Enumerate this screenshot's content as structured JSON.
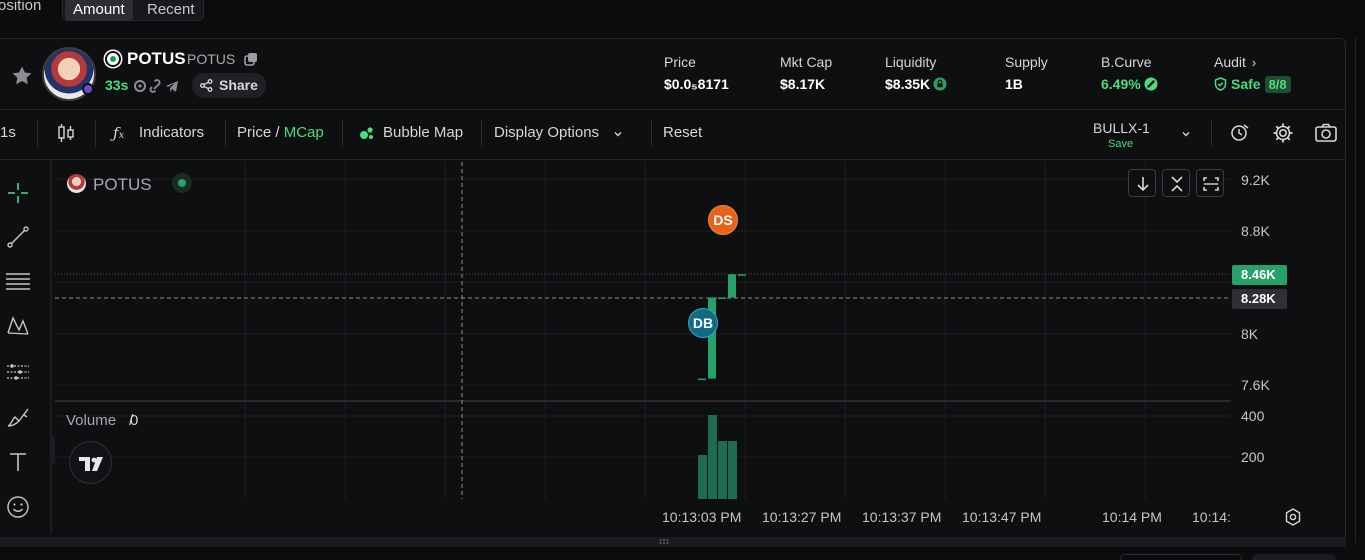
{
  "top_tabs": {
    "prev_label": "osition",
    "amount": "Amount",
    "recent": "Recent"
  },
  "token": {
    "name": "POTUS",
    "symbol": "POTUS",
    "age": "33s",
    "share_label": "Share"
  },
  "stats": {
    "price_label": "Price",
    "price_value": "$0.0₅8171",
    "mktcap_label": "Mkt Cap",
    "mktcap_value": "$8.17K",
    "liquidity_label": "Liquidity",
    "liquidity_value": "$8.35K",
    "supply_label": "Supply",
    "supply_value": "1B",
    "bcurve_label": "B.Curve",
    "bcurve_value": "6.49%",
    "audit_label": "Audit",
    "audit_value": "Safe",
    "audit_badge": "8/8"
  },
  "toolbar": {
    "interval": "1s",
    "indicators": "Indicators",
    "price_label": "Price",
    "slash": "/",
    "mcap_label": "MCap",
    "bubble_map": "Bubble Map",
    "display_options": "Display Options",
    "reset": "Reset",
    "layout_name": "BULLX-1",
    "layout_save": "Save"
  },
  "chart": {
    "legend_name": "POTUS",
    "volume_label": "Volume",
    "volume_value": "0",
    "markers": {
      "sell": "DS",
      "buy": "DB"
    },
    "y_ticks": [
      "9.2K",
      "8.8K",
      "8K",
      "7.6K"
    ],
    "volume_ticks": [
      "400",
      "200"
    ],
    "price_tag_last": "8.46K",
    "price_tag_cursor": "8.28K",
    "x_ticks": [
      "10:13:03 PM",
      "10:13:27 PM",
      "10:13:37 PM",
      "10:13:47 PM",
      "10:14 PM",
      "10:14:"
    ],
    "colors": {
      "up": "#26a269",
      "volume": "#1e6b52",
      "sell_marker": "#e8621c",
      "buy_marker": "#0f6a86"
    }
  },
  "chart_data": {
    "type": "candlestick",
    "y_axis_ticks": [
      "9.2K",
      "8.8K",
      "8K",
      "7.6K"
    ],
    "x_axis_ticks": [
      "10:13:03 PM",
      "10:13:27 PM",
      "10:13:37 PM",
      "10:13:47 PM",
      "10:14 PM"
    ],
    "candles": [
      {
        "open": 7.65,
        "high": 7.65,
        "low": 7.65,
        "close": 7.65
      },
      {
        "open": 7.65,
        "high": 8.28,
        "low": 7.65,
        "close": 8.28
      },
      {
        "open": 8.28,
        "high": 8.28,
        "low": 8.28,
        "close": 8.28
      },
      {
        "open": 8.28,
        "high": 8.46,
        "low": 8.28,
        "close": 8.46
      },
      {
        "open": 8.46,
        "high": 8.46,
        "low": 8.46,
        "close": 8.46
      }
    ],
    "volume": [
      220,
      420,
      290,
      290,
      0
    ],
    "last_price": "8.46K",
    "cursor_price": "8.28K"
  }
}
